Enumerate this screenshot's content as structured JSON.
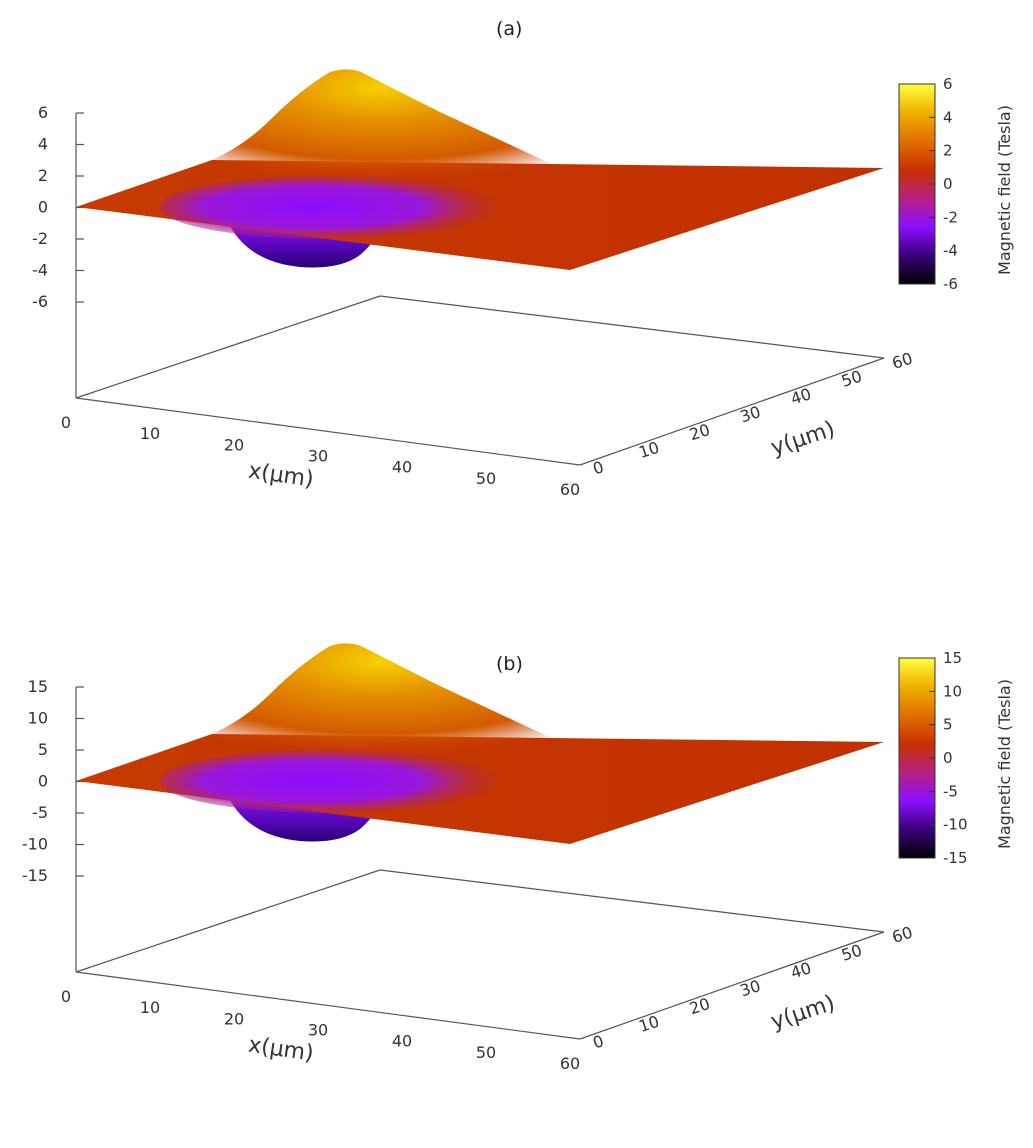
{
  "figure": {
    "panels": [
      {
        "label": "(a)"
      },
      {
        "label": "(b)"
      }
    ]
  },
  "chart_data": [
    {
      "type": "surface",
      "title": "(a)",
      "xlabel": "x(μm)",
      "ylabel": "y(μm)",
      "zlabel": "",
      "colorbar_label": "Magnetic field (Tesla)",
      "x_ticks": [
        "0",
        "10",
        "20",
        "30",
        "40",
        "50",
        "60"
      ],
      "y_ticks": [
        "0",
        "10",
        "20",
        "30",
        "40",
        "50",
        "60"
      ],
      "z_ticks": [
        "6",
        "4",
        "2",
        "0",
        "-2",
        "-4",
        "-6"
      ],
      "colorbar_ticks": [
        "6",
        "4",
        "2",
        "0",
        "-2",
        "-4",
        "-6"
      ],
      "xlim": [
        0,
        60
      ],
      "ylim": [
        0,
        60
      ],
      "zlim": [
        -6,
        6
      ],
      "surface": {
        "background_value": 0,
        "peak": {
          "x": 10,
          "y": 20,
          "value": 6
        },
        "trough": {
          "x": 12,
          "y": 8,
          "value": -4
        },
        "description_values": [
          {
            "x": 0,
            "y": 0,
            "z": 0
          },
          {
            "x": 60,
            "y": 0,
            "z": 0
          },
          {
            "x": 60,
            "y": 60,
            "z": 0
          },
          {
            "x": 0,
            "y": 60,
            "z": 0
          }
        ]
      },
      "colormap": [
        "#000000",
        "#3a007a",
        "#8a10ff",
        "#b82080",
        "#c83000",
        "#e07000",
        "#f0b000",
        "#ffff40"
      ]
    },
    {
      "type": "surface",
      "title": "(b)",
      "xlabel": "x(μm)",
      "ylabel": "y(μm)",
      "zlabel": "",
      "colorbar_label": "Magnetic field (Tesla)",
      "x_ticks": [
        "0",
        "10",
        "20",
        "30",
        "40",
        "50",
        "60"
      ],
      "y_ticks": [
        "0",
        "10",
        "20",
        "30",
        "40",
        "50",
        "60"
      ],
      "z_ticks": [
        "15",
        "10",
        "5",
        "0",
        "-5",
        "-10",
        "-15"
      ],
      "colorbar_ticks": [
        "15",
        "10",
        "5",
        "0",
        "-5",
        "-10",
        "-15"
      ],
      "xlim": [
        0,
        60
      ],
      "ylim": [
        0,
        60
      ],
      "zlim": [
        -15,
        15
      ],
      "surface": {
        "background_value": 0,
        "peak": {
          "x": 12,
          "y": 22,
          "value": 15
        },
        "trough": {
          "x": 14,
          "y": 10,
          "value": -8
        },
        "description_values": [
          {
            "x": 0,
            "y": 0,
            "z": 0
          },
          {
            "x": 60,
            "y": 0,
            "z": 0
          },
          {
            "x": 60,
            "y": 60,
            "z": 0
          },
          {
            "x": 0,
            "y": 60,
            "z": 0
          }
        ]
      },
      "colormap": [
        "#000000",
        "#3a007a",
        "#8a10ff",
        "#b82080",
        "#c83000",
        "#e07000",
        "#f0b000",
        "#ffff40"
      ]
    }
  ]
}
